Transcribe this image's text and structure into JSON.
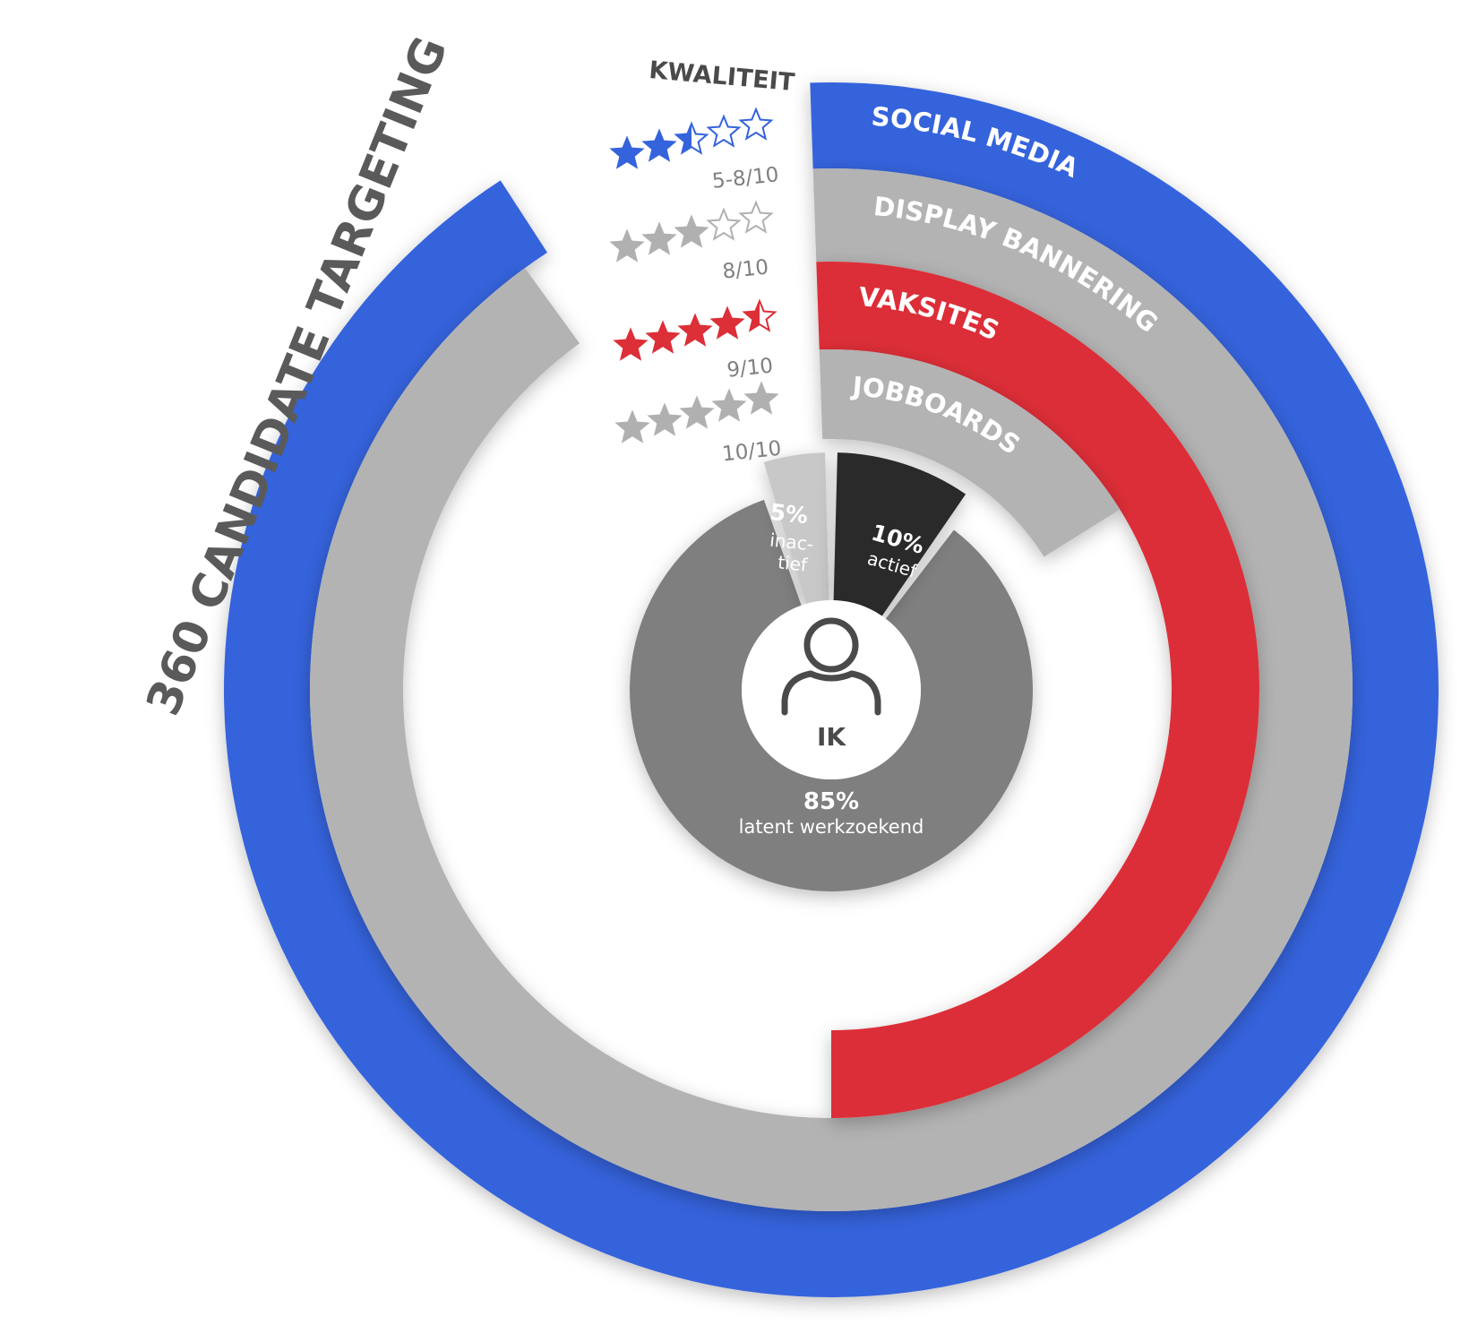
{
  "title": "360 CANDIDATE TARGETING",
  "quality_header": "KWALITEIT",
  "colors": {
    "blue": "#3563dc",
    "gray_ring": "#b3b3b3",
    "red": "#dc2f38",
    "dark_gray": "#7f7f7f",
    "light_gray": "#c8c8c8",
    "black_segment": "#2b2b2b",
    "title_gray": "#5a5a5a",
    "star_gray": "#b0b0b0"
  },
  "channels": [
    {
      "label": "SOCIAL MEDIA",
      "color": "blue",
      "score": "5-8/10",
      "stars": 2.5
    },
    {
      "label": "DISPLAY BANNERING",
      "color": "gray_ring",
      "score": "8/10",
      "stars": 3
    },
    {
      "label": "VAKSITES",
      "color": "red",
      "score": "9/10",
      "stars": 4.5
    },
    {
      "label": "JOBBOARDS",
      "color": "gray_ring",
      "score": "10/10",
      "stars": 5
    }
  ],
  "segments": {
    "actief": {
      "percent_label": "10%",
      "label": "actief",
      "value": 10
    },
    "inactief": {
      "percent_label": "5%",
      "label_line1": "inac-",
      "label_line2": "tief",
      "value": 5
    },
    "latent": {
      "percent_label": "85%",
      "label": "latent werkzoekend",
      "value": 85
    }
  },
  "center": {
    "label": "IK",
    "icon": "person-icon"
  }
}
